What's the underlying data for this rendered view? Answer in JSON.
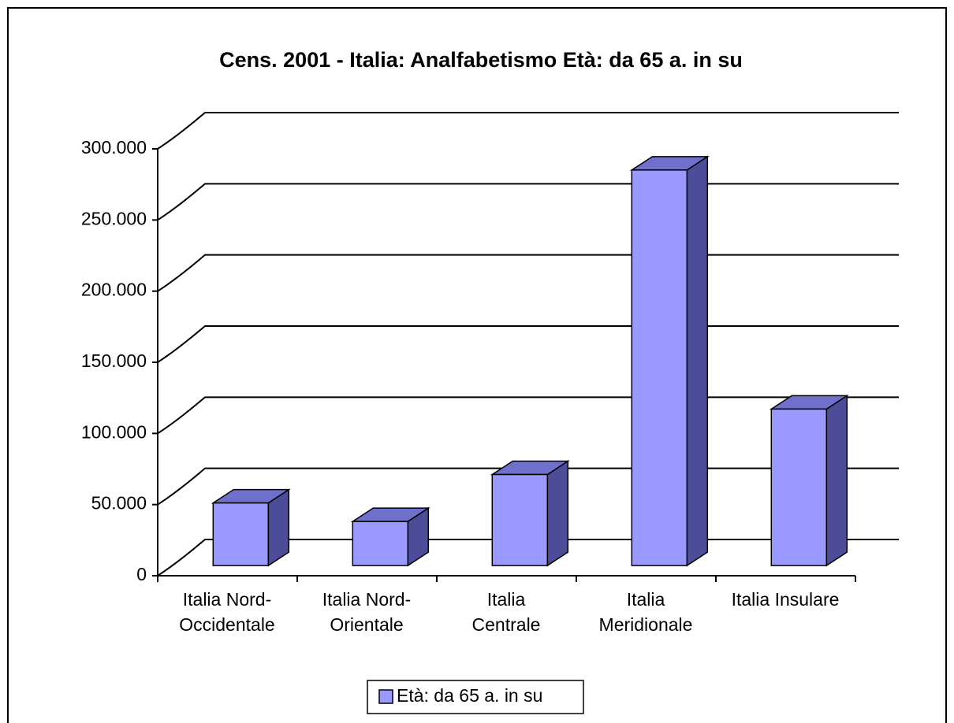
{
  "chart_data": {
    "type": "bar3d",
    "title": "Cens. 2001 - Italia: Analfabetismo   Età: da 65 a. in su",
    "categories": [
      "Italia Nord-\nOccidentale",
      "Italia Nord-\nOrientale",
      "Italia\nCentrale",
      "Italia\nMeridionale",
      "Italia Insulare"
    ],
    "series": [
      {
        "name": "Età: da 65 a. in su",
        "color": "#9999ff",
        "values": [
          44000,
          31000,
          64000,
          278000,
          110000
        ]
      }
    ],
    "ylim": [
      0,
      300000
    ],
    "yticks": [
      0,
      {
        "value": 50000,
        "label": "50.000"
      },
      {
        "value": 100000,
        "label": "100.000"
      },
      {
        "value": 150000,
        "label": "150.000"
      },
      {
        "value": 200000,
        "label": "200.000"
      },
      {
        "value": 250000,
        "label": "250.000"
      },
      {
        "value": 300000,
        "label": "300.000"
      }
    ],
    "grid": true,
    "legend": "bottom"
  }
}
